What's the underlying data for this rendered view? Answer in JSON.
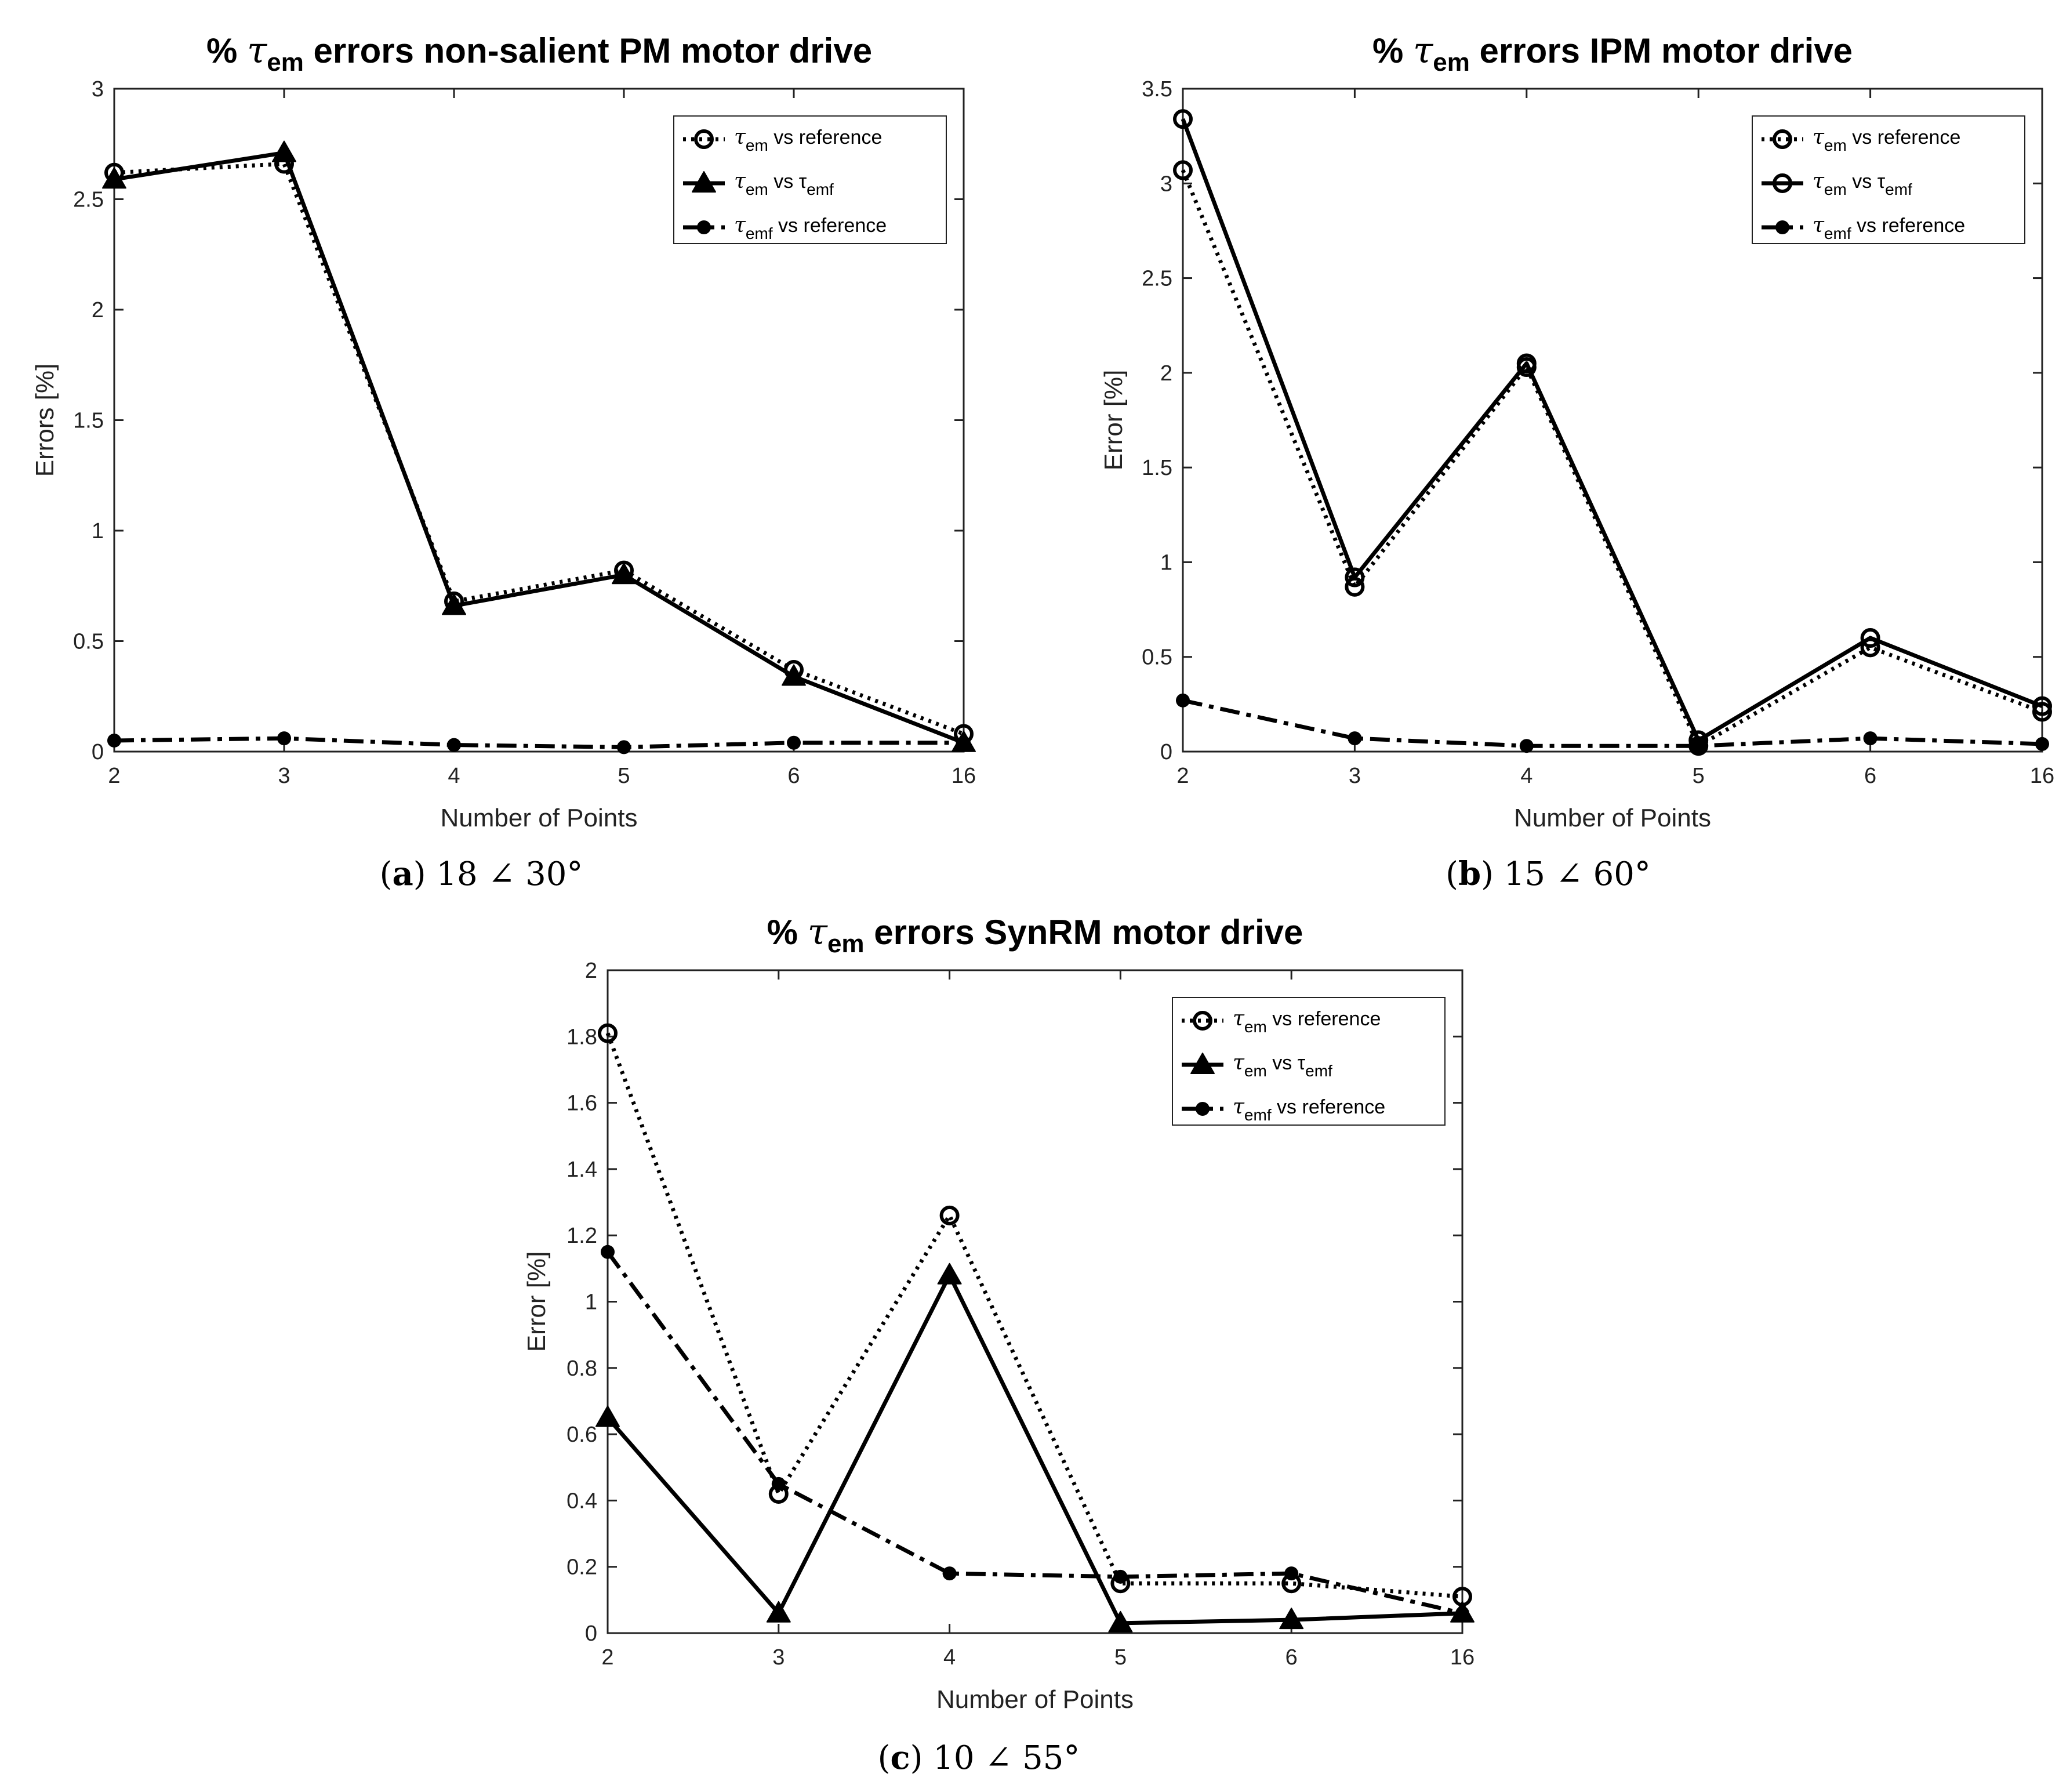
{
  "chart_data": [
    {
      "id": "a",
      "type": "line",
      "title": "% τem errors non-salient PM motor drive",
      "title_prefix": "%",
      "title_symbol": "τ",
      "title_symbol_sub": "em",
      "title_suffix": "errors non-salient PM motor drive",
      "xlabel": "Number of Points",
      "ylabel": "Errors [%]",
      "categories": [
        "2",
        "3",
        "4",
        "5",
        "6",
        "16"
      ],
      "ylim": [
        0,
        3
      ],
      "yticks": [
        0,
        0.5,
        1,
        1.5,
        2,
        2.5,
        3
      ],
      "ytick_labels": [
        "0",
        "0.5",
        "1",
        "1.5",
        "2",
        "2.5",
        "3"
      ],
      "caption_label": "a",
      "caption_value": "18 ∠ 30°",
      "legend_position": "top-right",
      "series": [
        {
          "name": "τem vs reference",
          "sym": "τ",
          "sub": "em",
          "rest": "vs reference",
          "rest_sub": "",
          "rest_tail": "",
          "style": "dotted",
          "marker": "circle",
          "values": [
            2.62,
            2.66,
            0.68,
            0.82,
            0.37,
            0.08
          ]
        },
        {
          "name": "τem vs τemf",
          "sym": "τ",
          "sub": "em",
          "rest": "vs τ",
          "rest_sub": "emf",
          "rest_tail": "",
          "style": "solid",
          "marker": "triangle",
          "values": [
            2.59,
            2.71,
            0.66,
            0.8,
            0.34,
            0.04
          ]
        },
        {
          "name": "τemf vs reference",
          "sym": "τ",
          "sub": "emf",
          "rest": "vs reference",
          "rest_sub": "",
          "rest_tail": "",
          "style": "dashdot",
          "marker": "dot",
          "values": [
            0.05,
            0.06,
            0.03,
            0.02,
            0.04,
            0.04
          ]
        }
      ]
    },
    {
      "id": "b",
      "type": "line",
      "title": "% τem errors IPM motor drive",
      "title_prefix": "%",
      "title_symbol": "τ",
      "title_symbol_sub": "em",
      "title_suffix": "errors IPM motor drive",
      "xlabel": "Number of Points",
      "ylabel": "Error [%]",
      "categories": [
        "2",
        "3",
        "4",
        "5",
        "6",
        "16"
      ],
      "ylim": [
        0,
        3.5
      ],
      "yticks": [
        0,
        0.5,
        1,
        1.5,
        2,
        2.5,
        3,
        3.5
      ],
      "ytick_labels": [
        "0",
        "0.5",
        "1",
        "1.5",
        "2",
        "2.5",
        "3",
        "3.5"
      ],
      "caption_label": "b",
      "caption_value": "15 ∠ 60°",
      "legend_position": "top-right",
      "series": [
        {
          "name": "τem vs reference",
          "sym": "τ",
          "sub": "em",
          "rest": "vs reference",
          "rest_sub": "",
          "rest_tail": "",
          "style": "dotted",
          "marker": "circle",
          "values": [
            3.07,
            0.87,
            2.03,
            0.03,
            0.55,
            0.21
          ]
        },
        {
          "name": "τem vs τemf",
          "sym": "τ",
          "sub": "em",
          "rest": "vs τ",
          "rest_sub": "emf",
          "rest_tail": "",
          "style": "solid",
          "marker": "circle",
          "values": [
            3.34,
            0.92,
            2.05,
            0.06,
            0.6,
            0.24
          ]
        },
        {
          "name": "τemf vs reference",
          "sym": "τ",
          "sub": "emf",
          "rest": "vs reference",
          "rest_sub": "",
          "rest_tail": "",
          "style": "dashdot",
          "marker": "dot",
          "values": [
            0.27,
            0.07,
            0.03,
            0.03,
            0.07,
            0.04
          ]
        }
      ]
    },
    {
      "id": "c",
      "type": "line",
      "title": "% τem errors SynRM motor drive",
      "title_prefix": "%",
      "title_symbol": "τ",
      "title_symbol_sub": "em",
      "title_suffix": "errors SynRM motor drive",
      "xlabel": "Number of Points",
      "ylabel": "Error [%]",
      "categories": [
        "2",
        "3",
        "4",
        "5",
        "6",
        "16"
      ],
      "ylim": [
        0,
        2
      ],
      "yticks": [
        0,
        0.2,
        0.4,
        0.6,
        0.8,
        1,
        1.2,
        1.4,
        1.6,
        1.8,
        2
      ],
      "ytick_labels": [
        "0",
        "0.2",
        "0.4",
        "0.6",
        "0.8",
        "1",
        "1.2",
        "1.4",
        "1.6",
        "1.8",
        "2"
      ],
      "caption_label": "c",
      "caption_value": "10 ∠ 55°",
      "legend_position": "top-right",
      "series": [
        {
          "name": "τem vs reference",
          "sym": "τ",
          "sub": "em",
          "rest": "vs reference",
          "rest_sub": "",
          "rest_tail": "",
          "style": "dotted",
          "marker": "circle",
          "values": [
            1.81,
            0.42,
            1.26,
            0.15,
            0.15,
            0.11
          ]
        },
        {
          "name": "τem vs τemf",
          "sym": "τ",
          "sub": "em",
          "rest": "vs τ",
          "rest_sub": "emf",
          "rest_tail": "",
          "style": "solid",
          "marker": "triangle",
          "values": [
            0.65,
            0.06,
            1.08,
            0.03,
            0.04,
            0.06
          ]
        },
        {
          "name": "τemf vs reference",
          "sym": "τ",
          "sub": "emf",
          "rest": "vs reference",
          "rest_sub": "",
          "rest_tail": "",
          "style": "dashdot",
          "marker": "dot",
          "values": [
            1.15,
            0.45,
            0.18,
            0.17,
            0.18,
            0.06
          ]
        }
      ]
    }
  ]
}
